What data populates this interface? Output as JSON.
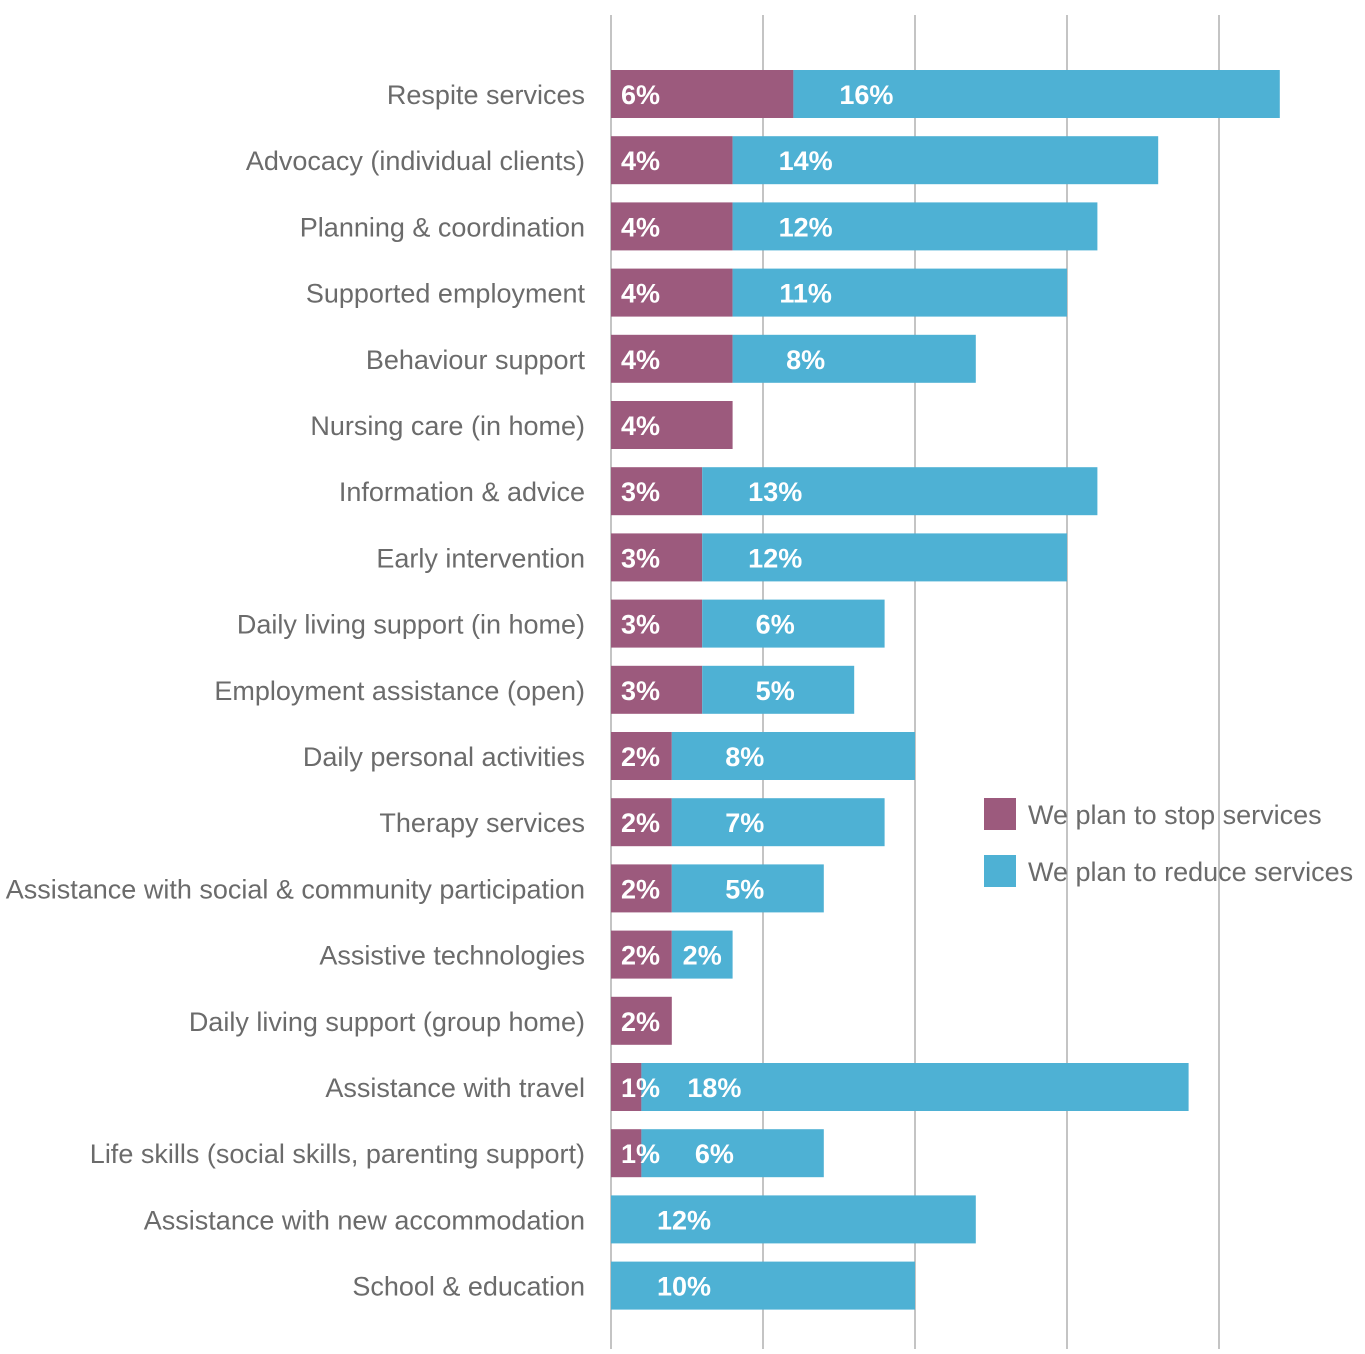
{
  "chart_data": {
    "type": "bar",
    "orientation": "horizontal",
    "stacked": true,
    "categories": [
      "Respite services",
      "Advocacy (individual clients)",
      "Planning & coordination",
      "Supported employment",
      "Behaviour support",
      "Nursing care (in home)",
      "Information & advice",
      "Early intervention",
      "Daily living support (in home)",
      "Employment assistance (open)",
      "Daily personal activities",
      "Therapy services",
      "Assistance with social & community participation",
      "Assistive technologies",
      "Daily living support (group home)",
      "Assistance with travel",
      "Life skills (social skills, parenting support)",
      "Assistance with new accommodation",
      "School & education"
    ],
    "series": [
      {
        "name": "We plan to stop services",
        "color": "#9c5a7d",
        "values": [
          6,
          4,
          4,
          4,
          4,
          4,
          3,
          3,
          3,
          3,
          2,
          2,
          2,
          2,
          2,
          1,
          1,
          0,
          0
        ],
        "labels": [
          "6%",
          "4%",
          "4%",
          "4%",
          "4%",
          "4%",
          "3%",
          "3%",
          "3%",
          "3%",
          "2%",
          "2%",
          "2%",
          "2%",
          "2%",
          "1%",
          "1%",
          "",
          ""
        ]
      },
      {
        "name": "We plan to reduce services",
        "color": "#4eb1d4",
        "values": [
          16,
          14,
          12,
          11,
          8,
          0,
          13,
          12,
          6,
          5,
          8,
          7,
          5,
          2,
          0,
          18,
          6,
          12,
          10
        ],
        "labels": [
          "16%",
          "14%",
          "12%",
          "11%",
          "8%",
          "",
          "13%",
          "12%",
          "6%",
          "5%",
          "8%",
          "7%",
          "5%",
          "2%",
          "",
          "18%",
          "6%",
          "12%",
          "10%"
        ]
      }
    ],
    "xlim": [
      0,
      25
    ],
    "grid": true,
    "legend_position": "right",
    "title": "",
    "xlabel": "",
    "ylabel": ""
  }
}
